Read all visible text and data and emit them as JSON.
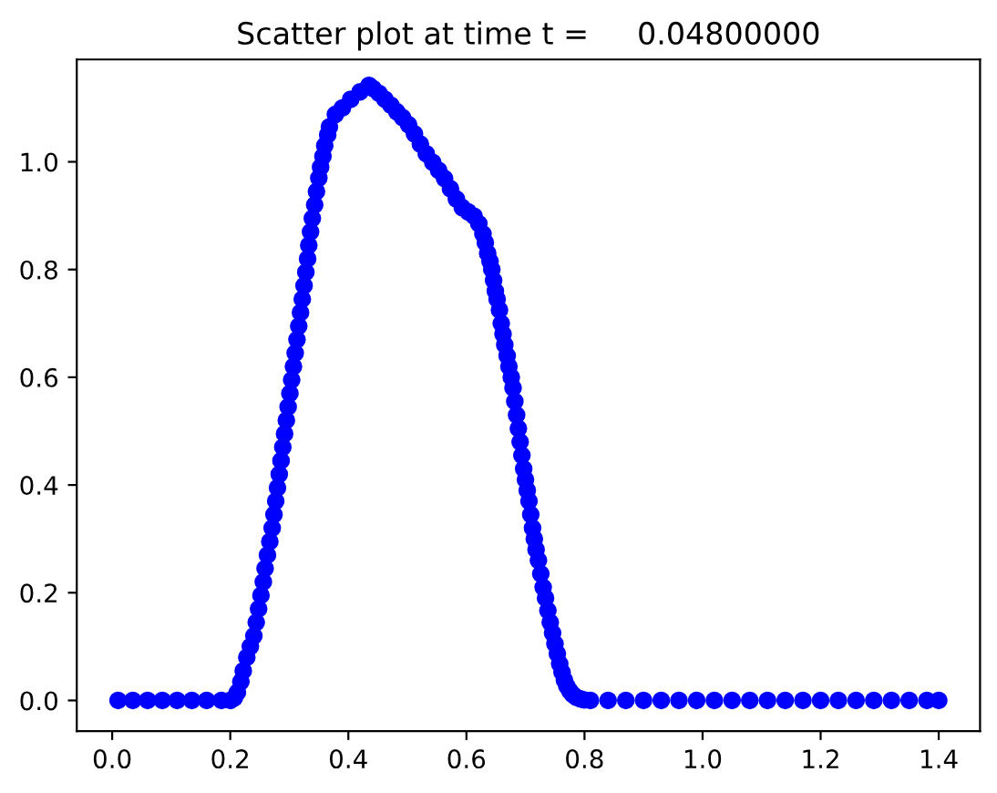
{
  "chart_data": {
    "type": "scatter",
    "title": "Scatter plot at time t =     0.04800000",
    "xlim": [
      -0.06,
      1.47
    ],
    "ylim": [
      -0.057,
      1.19
    ],
    "xticks": [
      {
        "value": 0,
        "label": "0.0"
      },
      0.2,
      0.4,
      0.6,
      0.8,
      {
        "value": 1,
        "label": "1.0"
      },
      1.2,
      1.4
    ],
    "yticks": [
      {
        "value": 0,
        "label": "0.0"
      },
      0.2,
      0.4,
      0.6,
      0.8,
      {
        "value": 1,
        "label": "1.0"
      }
    ],
    "marker": "circle",
    "series": [
      {
        "color": "#0000ff",
        "x": [
          0.01,
          0.035,
          0.06,
          0.085,
          0.11,
          0.135,
          0.16,
          0.185,
          0.2,
          0.207,
          0.212,
          0.218,
          0.222,
          0.228,
          0.234,
          0.24,
          0.244,
          0.248,
          0.252,
          0.256,
          0.259,
          0.263,
          0.267,
          0.271,
          0.274,
          0.277,
          0.28,
          0.283,
          0.286,
          0.289,
          0.292,
          0.295,
          0.298,
          0.301,
          0.304,
          0.307,
          0.31,
          0.313,
          0.316,
          0.319,
          0.322,
          0.325,
          0.328,
          0.331,
          0.333,
          0.336,
          0.339,
          0.343,
          0.346,
          0.35,
          0.353,
          0.357,
          0.36,
          0.365,
          0.368,
          0.378,
          0.39,
          0.404,
          0.42,
          0.435,
          0.442,
          0.452,
          0.462,
          0.472,
          0.482,
          0.492,
          0.502,
          0.512,
          0.522,
          0.532,
          0.543,
          0.553,
          0.563,
          0.573,
          0.583,
          0.593,
          0.603,
          0.613,
          0.621,
          0.628,
          0.632,
          0.636,
          0.64,
          0.643,
          0.646,
          0.649,
          0.652,
          0.656,
          0.659,
          0.662,
          0.665,
          0.669,
          0.672,
          0.676,
          0.679,
          0.682,
          0.685,
          0.688,
          0.691,
          0.694,
          0.697,
          0.7,
          0.703,
          0.706,
          0.709,
          0.712,
          0.715,
          0.718,
          0.722,
          0.726,
          0.73,
          0.734,
          0.738,
          0.742,
          0.746,
          0.75,
          0.754,
          0.758,
          0.762,
          0.766,
          0.77,
          0.775,
          0.78,
          0.786,
          0.793,
          0.8,
          0.81,
          0.84,
          0.87,
          0.9,
          0.93,
          0.96,
          0.99,
          1.02,
          1.05,
          1.08,
          1.11,
          1.14,
          1.17,
          1.2,
          1.23,
          1.26,
          1.29,
          1.32,
          1.35,
          1.38,
          1.4
        ],
        "values": [
          0,
          0,
          0,
          0,
          0,
          0,
          0,
          0,
          0,
          0.005,
          0.015,
          0.035,
          0.055,
          0.08,
          0.1,
          0.12,
          0.145,
          0.17,
          0.195,
          0.22,
          0.245,
          0.27,
          0.295,
          0.32,
          0.345,
          0.37,
          0.395,
          0.42,
          0.445,
          0.47,
          0.495,
          0.52,
          0.545,
          0.57,
          0.595,
          0.62,
          0.645,
          0.67,
          0.695,
          0.72,
          0.745,
          0.77,
          0.795,
          0.82,
          0.845,
          0.87,
          0.895,
          0.92,
          0.945,
          0.97,
          0.99,
          1.01,
          1.03,
          1.05,
          1.065,
          1.088,
          1.1,
          1.116,
          1.13,
          1.142,
          1.136,
          1.127,
          1.116,
          1.105,
          1.093,
          1.082,
          1.069,
          1.052,
          1.033,
          1.015,
          0.999,
          0.984,
          0.969,
          0.95,
          0.931,
          0.915,
          0.907,
          0.899,
          0.885,
          0.866,
          0.85,
          0.83,
          0.815,
          0.8,
          0.78,
          0.76,
          0.745,
          0.725,
          0.7,
          0.68,
          0.66,
          0.64,
          0.62,
          0.6,
          0.58,
          0.555,
          0.53,
          0.505,
          0.48,
          0.455,
          0.43,
          0.41,
          0.39,
          0.37,
          0.345,
          0.32,
          0.3,
          0.28,
          0.26,
          0.235,
          0.21,
          0.19,
          0.167,
          0.145,
          0.125,
          0.105,
          0.087,
          0.068,
          0.052,
          0.038,
          0.027,
          0.018,
          0.011,
          0.006,
          0.003,
          0.001,
          0,
          0,
          0,
          0,
          0,
          0,
          0,
          0,
          0,
          0,
          0,
          0,
          0,
          0,
          0,
          0,
          0,
          0,
          0,
          0,
          0
        ]
      }
    ]
  }
}
